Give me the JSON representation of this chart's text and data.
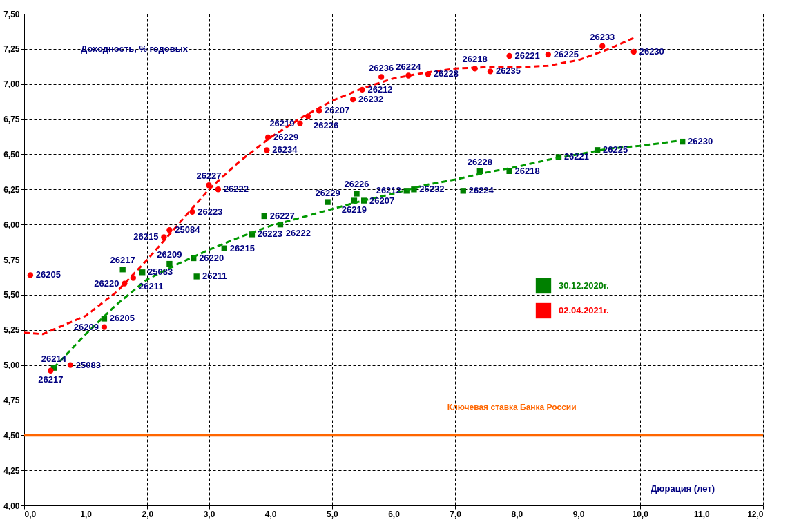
{
  "chart_data": {
    "type": "scatter",
    "xlabel": "Дюрация (лет)",
    "ylabel": "Доходность, % годовых",
    "xlim": [
      0,
      12
    ],
    "xticks": [
      {
        "value": 0,
        "label": "0,0"
      },
      {
        "value": 1,
        "label": "1,0"
      },
      {
        "value": 2,
        "label": "2,0"
      },
      {
        "value": 3,
        "label": "3,0"
      },
      {
        "value": 4,
        "label": "4,0"
      },
      {
        "value": 5,
        "label": "5,0"
      },
      {
        "value": 6,
        "label": "6,0"
      },
      {
        "value": 7,
        "label": "7,0"
      },
      {
        "value": 8,
        "label": "8,0"
      },
      {
        "value": 9,
        "label": "9,0"
      },
      {
        "value": 10,
        "label": "10,0"
      },
      {
        "value": 11,
        "label": "11,0"
      },
      {
        "value": 12,
        "label": "12,0"
      }
    ],
    "ylim": [
      4,
      7.5
    ],
    "yticks": [
      {
        "value": 4,
        "label": "4,00"
      },
      {
        "value": 4.25,
        "label": "4,25"
      },
      {
        "value": 4.5,
        "label": "4,50"
      },
      {
        "value": 4.75,
        "label": "4,75"
      },
      {
        "value": 5,
        "label": "5,00"
      },
      {
        "value": 5.25,
        "label": "5,25"
      },
      {
        "value": 5.5,
        "label": "5,50"
      },
      {
        "value": 5.75,
        "label": "5,75"
      },
      {
        "value": 6,
        "label": "6,00"
      },
      {
        "value": 6.25,
        "label": "6,25"
      },
      {
        "value": 6.5,
        "label": "6,50"
      },
      {
        "value": 6.75,
        "label": "6,75"
      },
      {
        "value": 7,
        "label": "7,00"
      },
      {
        "value": 7.25,
        "label": "7,25"
      },
      {
        "value": 7.5,
        "label": "7,50"
      }
    ],
    "grid": true,
    "legend": "right",
    "series": [
      {
        "name": "30.12.2020г.",
        "color": "#008000",
        "marker": "square",
        "x": [
          0.48,
          1.3,
          1.6,
          1.92,
          2.36,
          2.75,
          2.8,
          3.25,
          3.7,
          3.9,
          4.16,
          4.93,
          5.36,
          5.4,
          5.52,
          6.21,
          6.33,
          7.13,
          7.4,
          7.88,
          8.68,
          9.31,
          10.69
        ],
        "values": [
          4.98,
          5.33,
          5.68,
          5.66,
          5.72,
          5.76,
          5.63,
          5.83,
          5.93,
          6.06,
          6.0,
          6.16,
          6.17,
          6.22,
          6.17,
          6.24,
          6.25,
          6.24,
          6.38,
          6.38,
          6.48,
          6.53,
          6.59
        ]
      },
      {
        "name": "02.04.2021г.",
        "color": "#ff0000",
        "marker": "circle",
        "x": [
          0.1,
          0.43,
          0.75,
          1.3,
          1.63,
          1.77,
          2.27,
          2.36,
          2.73,
          3.0,
          3.15,
          3.94,
          3.96,
          4.48,
          4.61,
          4.79,
          5.34,
          5.49,
          5.8,
          6.24,
          6.56,
          7.32,
          7.57,
          7.88,
          8.51,
          9.39,
          9.9
        ],
        "values": [
          5.64,
          4.96,
          5.0,
          5.27,
          5.58,
          5.62,
          5.91,
          5.96,
          6.09,
          6.28,
          6.25,
          6.53,
          6.62,
          6.72,
          6.77,
          6.81,
          6.89,
          6.96,
          7.05,
          7.06,
          7.07,
          7.11,
          7.09,
          7.2,
          7.21,
          7.27,
          7.23
        ]
      },
      {
        "type": "line",
        "color": "#009900",
        "line_style": "dashed",
        "marker": "none",
        "x": [
          0.48,
          1.0,
          1.5,
          2.0,
          2.5,
          3.0,
          3.5,
          4.0,
          4.5,
          5.0,
          5.5,
          6.0,
          6.5,
          7.0,
          7.5,
          8.0,
          8.5,
          9.0,
          9.5,
          10.0,
          10.7
        ],
        "values": [
          4.98,
          5.22,
          5.43,
          5.61,
          5.72,
          5.82,
          5.91,
          5.99,
          6.05,
          6.11,
          6.17,
          6.22,
          6.28,
          6.32,
          6.37,
          6.41,
          6.46,
          6.5,
          6.54,
          6.56,
          6.6
        ]
      },
      {
        "type": "line",
        "color": "#ff0000",
        "line_style": "dashed",
        "marker": "none",
        "x": [
          0.0,
          0.3,
          1.0,
          1.5,
          2.0,
          2.5,
          3.0,
          3.5,
          4.0,
          4.5,
          5.0,
          5.5,
          6.0,
          6.5,
          7.0,
          7.5,
          8.0,
          8.5,
          9.0,
          9.5,
          9.91
        ],
        "values": [
          5.23,
          5.22,
          5.35,
          5.52,
          5.75,
          6.0,
          6.25,
          6.45,
          6.62,
          6.76,
          6.88,
          6.97,
          7.04,
          7.08,
          7.11,
          7.12,
          7.12,
          7.13,
          7.17,
          7.25,
          7.33
        ]
      }
    ],
    "ref_lines": [
      {
        "axis": "y",
        "value": 4.5,
        "label": "Ключевая ставка Банка России",
        "color": "#ff6600"
      }
    ],
    "annotations": [
      {
        "text": "26214",
        "x": 0.48,
        "y": 4.98
      },
      {
        "text": "26205",
        "x": 1.3,
        "y": 5.33
      },
      {
        "text": "26217",
        "x": 1.6,
        "y": 5.68
      },
      {
        "text": "25083",
        "x": 1.92,
        "y": 5.66
      },
      {
        "text": "26209",
        "x": 2.36,
        "y": 5.72
      },
      {
        "text": "26220",
        "x": 2.75,
        "y": 5.76
      },
      {
        "text": "26211",
        "x": 2.8,
        "y": 5.63
      },
      {
        "text": "26215",
        "x": 3.25,
        "y": 5.83
      },
      {
        "text": "26223",
        "x": 3.7,
        "y": 5.93
      },
      {
        "text": "26227",
        "x": 3.9,
        "y": 6.06
      },
      {
        "text": "26222",
        "x": 4.16,
        "y": 6.0
      },
      {
        "text": "26229",
        "x": 4.93,
        "y": 6.16
      },
      {
        "text": "26219",
        "x": 5.36,
        "y": 6.17
      },
      {
        "text": "26226",
        "x": 5.4,
        "y": 6.22
      },
      {
        "text": "26207",
        "x": 5.52,
        "y": 6.17
      },
      {
        "text": "26212",
        "x": 6.21,
        "y": 6.24
      },
      {
        "text": "26232",
        "x": 6.33,
        "y": 6.25
      },
      {
        "text": "26224",
        "x": 7.13,
        "y": 6.24
      },
      {
        "text": "26228",
        "x": 7.4,
        "y": 6.38
      },
      {
        "text": "26218",
        "x": 7.88,
        "y": 6.38
      },
      {
        "text": "26221",
        "x": 8.68,
        "y": 6.48
      },
      {
        "text": "26225",
        "x": 9.31,
        "y": 6.53
      },
      {
        "text": "26230",
        "x": 10.69,
        "y": 6.59
      },
      {
        "text": "26205",
        "x": 0.1,
        "y": 5.64
      },
      {
        "text": "26217",
        "x": 0.43,
        "y": 4.96
      },
      {
        "text": "25083",
        "x": 0.75,
        "y": 5.0
      },
      {
        "text": "26209",
        "x": 1.3,
        "y": 5.27
      },
      {
        "text": "26220",
        "x": 1.63,
        "y": 5.58
      },
      {
        "text": "26211",
        "x": 1.77,
        "y": 5.62
      },
      {
        "text": "26215",
        "x": 2.27,
        "y": 5.91
      },
      {
        "text": "25084",
        "x": 2.36,
        "y": 5.96
      },
      {
        "text": "26223",
        "x": 2.73,
        "y": 6.09
      },
      {
        "text": "26227",
        "x": 3.0,
        "y": 6.28
      },
      {
        "text": "26222",
        "x": 3.15,
        "y": 6.25
      },
      {
        "text": "26234",
        "x": 3.94,
        "y": 6.53
      },
      {
        "text": "26229",
        "x": 3.96,
        "y": 6.62
      },
      {
        "text": "26219",
        "x": 4.48,
        "y": 6.72
      },
      {
        "text": "26226",
        "x": 4.61,
        "y": 6.77
      },
      {
        "text": "26207",
        "x": 4.79,
        "y": 6.81
      },
      {
        "text": "26232",
        "x": 5.34,
        "y": 6.89
      },
      {
        "text": "26212",
        "x": 5.49,
        "y": 6.96
      },
      {
        "text": "26236",
        "x": 5.8,
        "y": 7.05
      },
      {
        "text": "26224",
        "x": 6.24,
        "y": 7.06
      },
      {
        "text": "26228",
        "x": 6.56,
        "y": 7.07
      },
      {
        "text": "26218",
        "x": 7.32,
        "y": 7.11
      },
      {
        "text": "26235",
        "x": 7.57,
        "y": 7.09
      },
      {
        "text": "26221",
        "x": 7.88,
        "y": 7.2
      },
      {
        "text": "26225",
        "x": 8.51,
        "y": 7.21
      },
      {
        "text": "26233",
        "x": 9.39,
        "y": 7.27
      },
      {
        "text": "26230",
        "x": 9.9,
        "y": 7.23
      }
    ]
  }
}
